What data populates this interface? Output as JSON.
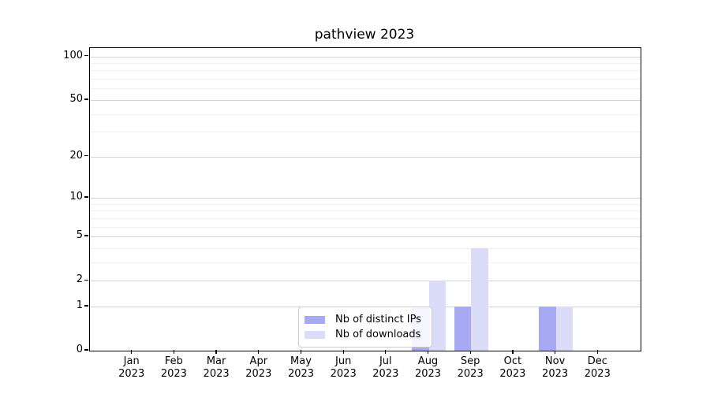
{
  "chart_data": {
    "type": "bar",
    "title": "pathview 2023",
    "categories": [
      "Jan",
      "Feb",
      "Mar",
      "Apr",
      "May",
      "Jun",
      "Jul",
      "Aug",
      "Sep",
      "Oct",
      "Nov",
      "Dec"
    ],
    "year_label": "2023",
    "series": [
      {
        "name": "Nb of distinct IPs",
        "color": "#a7a9f2",
        "values": [
          0,
          0,
          0,
          0,
          0,
          0,
          0,
          1,
          1,
          0,
          1,
          0
        ]
      },
      {
        "name": "Nb of downloads",
        "color": "#dbdcf8",
        "values": [
          0,
          0,
          0,
          0,
          0,
          0,
          0,
          2,
          4,
          0,
          1,
          0
        ]
      }
    ],
    "y_axis": {
      "scale": "log10(1+x)",
      "ticks": [
        0,
        1,
        2,
        5,
        10,
        20,
        50,
        100
      ],
      "minor_ticks": [
        3,
        4,
        6,
        7,
        8,
        9,
        30,
        40,
        60,
        70,
        80,
        90
      ],
      "range_max_value": 113
    },
    "x_axis": {
      "label_line2": "2023"
    },
    "legend_position": "lower center",
    "grid": true,
    "colors": {
      "major_grid": "#d4d4d4",
      "minor_grid": "#f0f0f0",
      "axis": "#000000",
      "background": "#ffffff"
    }
  }
}
